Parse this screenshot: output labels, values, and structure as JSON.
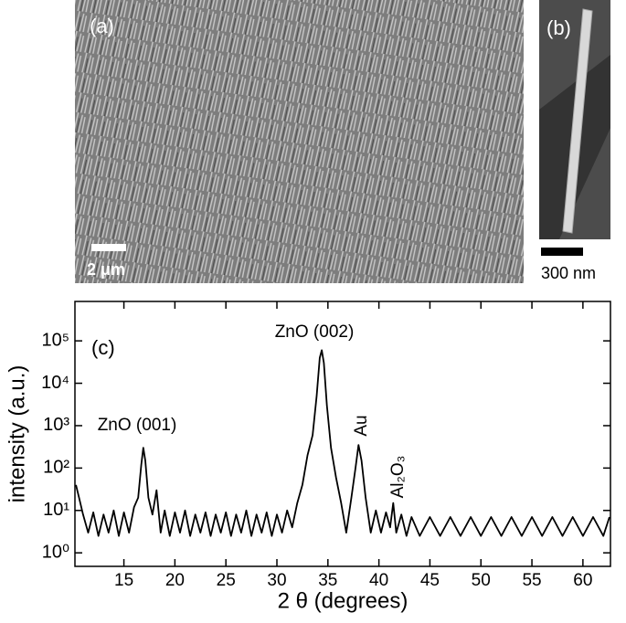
{
  "images": [
    {
      "label": "(a)",
      "scale_bar": "2 μm"
    },
    {
      "label": "(b)",
      "scale_bar": "300 nm"
    }
  ],
  "chart_data": {
    "type": "line",
    "label": "(c)",
    "xlabel": "2 θ (degrees)",
    "ylabel": "intensity (a.u.)",
    "annotations": [
      "ZnO (001)",
      "ZnO (002)",
      "Au",
      "Al₂O₃"
    ],
    "color": "#000000",
    "log_y": true,
    "x": [
      10.3,
      10.6,
      11,
      11.5,
      12,
      12.5,
      13,
      13.5,
      14,
      14.5,
      15,
      15.5,
      16,
      16.4,
      16.7,
      16.9,
      17.1,
      17.4,
      17.8,
      18.2,
      18.6,
      19,
      19.5,
      20,
      20.5,
      21,
      21.5,
      22,
      22.5,
      23,
      23.5,
      24,
      24.5,
      25,
      25.5,
      26,
      26.5,
      27,
      27.5,
      28,
      28.5,
      29,
      29.5,
      30,
      30.5,
      31,
      31.5,
      32,
      32.5,
      33,
      33.5,
      33.9,
      34.2,
      34.4,
      34.6,
      34.9,
      35.3,
      35.8,
      36.3,
      36.8,
      37.3,
      37.7,
      38,
      38.3,
      38.7,
      39.2,
      39.7,
      40.2,
      40.7,
      41.1,
      41.4,
      41.7,
      42.2,
      42.7,
      43.2,
      44,
      45,
      46,
      47,
      48,
      49,
      50,
      51,
      52,
      53,
      54,
      55,
      56,
      57,
      58,
      59,
      60,
      61,
      62,
      62.6
    ],
    "values": [
      40,
      20,
      8,
      3,
      9,
      2.5,
      8,
      3,
      10,
      2.5,
      9,
      3,
      12,
      20,
      120,
      300,
      150,
      20,
      8,
      30,
      3,
      10,
      2.5,
      9,
      3,
      10,
      2.5,
      8,
      3,
      9,
      2.5,
      8,
      3,
      9,
      2.5,
      8,
      3,
      10,
      2.5,
      8,
      3,
      9,
      2.5,
      8,
      3,
      10,
      4,
      15,
      40,
      200,
      600,
      5000,
      40000,
      60000,
      30000,
      3000,
      300,
      60,
      15,
      3,
      20,
      100,
      350,
      150,
      20,
      3,
      10,
      3,
      9,
      4,
      15,
      3,
      8,
      2.5,
      7,
      2.5,
      7,
      2.5,
      7,
      2.5,
      7,
      2.5,
      7,
      2.5,
      7,
      2.5,
      7,
      2.5,
      7,
      2.5,
      7,
      2.5,
      7,
      2.5,
      7
    ],
    "xlim": [
      10.2,
      62.7
    ],
    "ylim": [
      0.48,
      850000
    ],
    "xticks": [
      15,
      20,
      25,
      30,
      35,
      40,
      45,
      50,
      55,
      60
    ],
    "yticks": [
      {
        "value": 1,
        "label": "10⁰"
      },
      {
        "value": 10,
        "label": "10¹"
      },
      {
        "value": 100,
        "label": "10²"
      },
      {
        "value": 1000,
        "label": "10³"
      },
      {
        "value": 10000,
        "label": "10⁴"
      },
      {
        "value": 100000,
        "label": "10⁵"
      }
    ]
  }
}
